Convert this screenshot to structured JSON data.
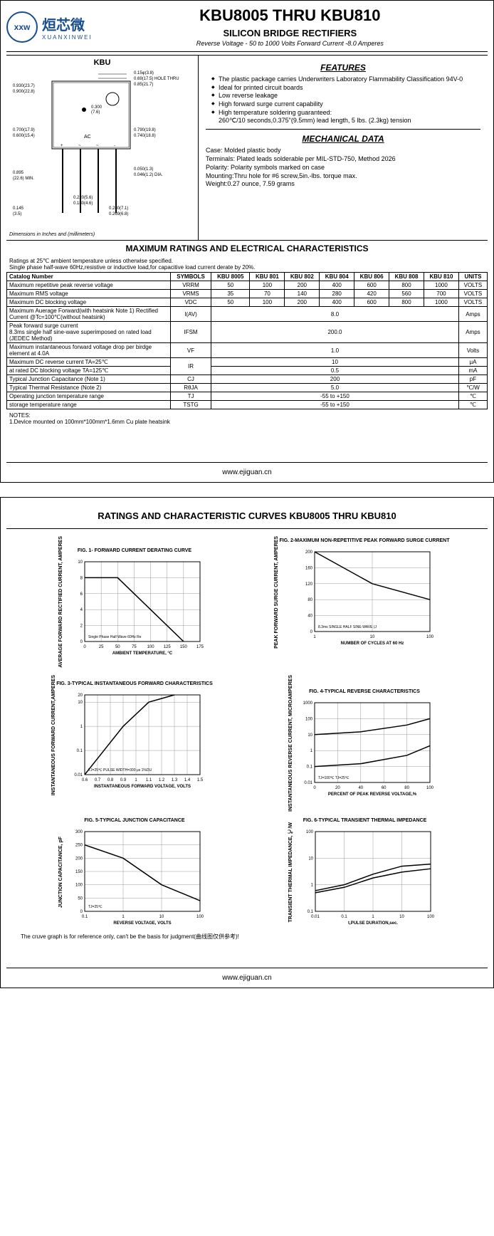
{
  "logo": {
    "brand_cn": "烜芯微",
    "brand_en": "XUANXINWEI",
    "icon_text": "xxw"
  },
  "title": "KBU8005 THRU KBU810",
  "subtitle": "SILICON BRIDGE RECTIFIERS",
  "subsub": "Reverse Voltage - 50 to 1000 Volts    Forward Current -8.0 Amperes",
  "package_label": "KBU",
  "dim_text": "Dimensions in Inches and (millimeters)",
  "features_title": "FEATURES",
  "features": [
    "The plastic package carries Underwriters Laboratory Flammability Classification 94V-0",
    "Ideal for printed circuit boards",
    "Low reverse leakage",
    "High forward surge current capability",
    "High temperature soldering guaranteed:"
  ],
  "features_extra": "260℃/10 seconds,0.375\"(9.5mm) lead length, 5 lbs. (2.3kg) tension",
  "mech_title": "MECHANICAL DATA",
  "mech": {
    "case": "Case: Molded plastic body",
    "terminals": "Terminals: Plated leads solderable per MIL-STD-750, Method 2026",
    "polarity": "Polarity: Polarity symbols marked on case",
    "mounting": "Mounting:Thru hole for #6 screw,5in.-lbs. torque max.",
    "weight": "Weight:0.27 ounce, 7.59 grams"
  },
  "ratings_title": "MAXIMUM RATINGS AND ELECTRICAL CHARACTERISTICS",
  "ratings_desc": "Ratings at 25℃ ambient temperature unless otherwise specified.\nSingle phase half-wave 60Hz,resistive or inductive load,for capacitive load current derate by 20%.",
  "columns_label": "Catalog        Number",
  "columns": [
    "SYMBOLS",
    "KBU 8005",
    "KBU 801",
    "KBU 802",
    "KBU 804",
    "KBU 806",
    "KBU 808",
    "KBU 810",
    "UNITS"
  ],
  "rows": [
    {
      "param": "Maximum repetitive peak reverse voltage",
      "sym": "VRRM",
      "vals": [
        "50",
        "100",
        "200",
        "400",
        "600",
        "800",
        "1000"
      ],
      "unit": "VOLTS",
      "merged": false
    },
    {
      "param": "Maximum RMS voltage",
      "sym": "VRMS",
      "vals": [
        "35",
        "70",
        "140",
        "280",
        "420",
        "560",
        "700"
      ],
      "unit": "VOLTS",
      "merged": false
    },
    {
      "param": "Maximum DC blocking voltage",
      "sym": "VDC",
      "vals": [
        "50",
        "100",
        "200",
        "400",
        "600",
        "800",
        "1000"
      ],
      "unit": "VOLTS",
      "merged": false
    },
    {
      "param": "Maximum Auerage Forward(with heatsink Note 1) Rectified Current @Tc=100℃(without heatsink)",
      "sym": "I(AV)",
      "vals": [
        "8.0"
      ],
      "unit": "Amps",
      "merged": true
    },
    {
      "param": "Peak forward surge current\n8.3ms single half sine-wave superimposed on rated load (JEDEC Method)",
      "sym": "IFSM",
      "vals": [
        "200.0"
      ],
      "unit": "Amps",
      "merged": true
    },
    {
      "param": "Maximum instantaneous forward voltage drop per birdge element at 4.0A",
      "sym": "VF",
      "vals": [
        "1.0"
      ],
      "unit": "Volts",
      "merged": true
    },
    {
      "param": "Maximum DC reverse current    TA=25℃",
      "sym": "IR",
      "vals": [
        "10"
      ],
      "unit": "μA",
      "merged": true,
      "rowspan_sym": 2
    },
    {
      "param": "at rated DC blocking voltage    TA=125℃",
      "sym": "",
      "vals": [
        "0.5"
      ],
      "unit": "mA",
      "merged": true,
      "skip_sym": true
    },
    {
      "param": "Typical Junction Capacitance (Note 1)",
      "sym": "CJ",
      "vals": [
        "200"
      ],
      "unit": "pF",
      "merged": true
    },
    {
      "param": "Typical Thermal Resistance (Note 2)",
      "sym": "RθJA",
      "vals": [
        "5.0"
      ],
      "unit": "℃/W",
      "merged": true
    },
    {
      "param": "Operating junction temperature range",
      "sym": "TJ",
      "vals": [
        "-55 to +150"
      ],
      "unit": "℃",
      "merged": true
    },
    {
      "param": "storage temperature range",
      "sym": "TSTG",
      "vals": [
        "-55 to +150"
      ],
      "unit": "℃",
      "merged": true
    }
  ],
  "notes_title": "NOTES:",
  "notes_text": "1.Device mounted on 100mm*100mm*1.6mm Cu plate heatsink",
  "footer": "www.ejiguan.cn",
  "page2_title": "RATINGS AND CHARACTERISTIC CURVES KBU8005 THRU KBU810",
  "charts": [
    {
      "title": "FIG. 1- FORWARD CURRENT DERATING CURVE",
      "ylabel": "AVERAGE FORWARD RECTIFIED CURRENT, AMPERES",
      "xlabel": "AMBIENT TEMPERATURE, °C",
      "xlim": [
        0,
        175
      ],
      "ylim": [
        0,
        10
      ],
      "xticks": [
        0,
        25,
        50,
        75,
        100,
        125,
        150,
        175
      ],
      "yticks": [
        0,
        2,
        4,
        6,
        8,
        10
      ],
      "xscale": "linear",
      "yscale": "linear",
      "note": "Single Phase Half Wave 60Hz Resistive or Inductive Load",
      "line": [
        [
          0,
          8
        ],
        [
          50,
          8
        ],
        [
          150,
          0
        ]
      ],
      "line_color": "#000",
      "bg": "#fff",
      "grid": "#999"
    },
    {
      "title": "FIG. 2-MAXIMUM NON-REPETITIVE PEAK FORWARD SURGE CURRENT",
      "ylabel": "PEAK FORWARD SURGE CURRENT, AMPERES",
      "xlabel": "NUMBER OF CYCLES AT 60 Hz",
      "xlim": [
        1,
        100
      ],
      "ylim": [
        0,
        200
      ],
      "xticks": [
        1,
        10,
        100
      ],
      "yticks": [
        0,
        40,
        80,
        120,
        160,
        200
      ],
      "xscale": "log",
      "yscale": "linear",
      "note": "8.3ms SINGLE HALF SINE-WAVE (JEDEC Method)",
      "line": [
        [
          1,
          200
        ],
        [
          10,
          120
        ],
        [
          100,
          80
        ]
      ],
      "line_color": "#000",
      "bg": "#fff",
      "grid": "#999"
    },
    {
      "title": "FIG. 3-TYPICAL INSTANTANEOUS FORWARD CHARACTERISTICS",
      "ylabel": "INSTANTANEOUS FORWARD CURRENT,AMPERES",
      "xlabel": "INSTANTANEOUS FORWARD VOLTAGE, VOLTS",
      "xlim": [
        0.6,
        1.5
      ],
      "ylim": [
        0.01,
        20
      ],
      "xticks": [
        0.6,
        0.7,
        0.8,
        0.9,
        1.0,
        1.1,
        1.2,
        1.3,
        1.4,
        1.5
      ],
      "yticks": [
        0.01,
        0.1,
        1,
        10,
        20
      ],
      "xscale": "linear",
      "yscale": "log",
      "note": "TJ=25℃ PULSE WIDTH=300 μs 1%DUTY CYCLE",
      "line": [
        [
          0.6,
          0.01
        ],
        [
          0.75,
          0.1
        ],
        [
          0.9,
          1
        ],
        [
          1.1,
          10
        ],
        [
          1.3,
          20
        ]
      ],
      "line_color": "#000",
      "bg": "#fff",
      "grid": "#999"
    },
    {
      "title": "FIG. 4-TYPICAL REVERSE CHARACTERISTICS",
      "ylabel": "INSTANTANEOUS REVERSE CURRENT, MICROAMPERES",
      "xlabel": "PERCENT OF PEAK REVERSE VOLTAGE,%",
      "xlim": [
        0,
        100
      ],
      "ylim": [
        0.01,
        1000
      ],
      "xticks": [
        0,
        20,
        40,
        60,
        80,
        100
      ],
      "yticks": [
        0.01,
        0.1,
        1,
        10,
        100,
        1000
      ],
      "xscale": "linear",
      "yscale": "log",
      "note": "TJ=100℃  TJ=25℃",
      "lines": [
        {
          "pts": [
            [
              0,
              10
            ],
            [
              40,
              15
            ],
            [
              80,
              40
            ],
            [
              100,
              100
            ]
          ],
          "label": "TJ=100℃"
        },
        {
          "pts": [
            [
              0,
              0.1
            ],
            [
              40,
              0.15
            ],
            [
              80,
              0.5
            ],
            [
              100,
              2
            ]
          ],
          "label": "TJ=25℃"
        }
      ],
      "line_color": "#000",
      "bg": "#fff",
      "grid": "#999"
    },
    {
      "title": "FIG. 5-TYPICAL JUNCTION CAPACITANCE",
      "ylabel": "JUNCTION CAPACITANCE, pF",
      "xlabel": "REVERSE VOLTAGE, VOLTS",
      "xlim": [
        0.1,
        100
      ],
      "ylim": [
        0,
        300
      ],
      "xticks": [
        0.1,
        1.0,
        10,
        100
      ],
      "yticks": [
        0,
        50,
        100,
        150,
        200,
        250,
        300
      ],
      "xscale": "log",
      "yscale": "linear",
      "note": "TJ=25℃",
      "line": [
        [
          0.1,
          250
        ],
        [
          1,
          200
        ],
        [
          10,
          100
        ],
        [
          100,
          40
        ]
      ],
      "line_color": "#000",
      "bg": "#fff",
      "grid": "#999"
    },
    {
      "title": "FIG. 6-TYPICAL TRANSIENT THERMAL IMPEDANCE",
      "ylabel": "TRANSIENT THERMAL IMPEDANCE, ℃/W",
      "xlabel": "t,PULSE DURATION,sec.",
      "xlim": [
        0.01,
        100
      ],
      "ylim": [
        0.1,
        100
      ],
      "xticks": [
        0.01,
        0.1,
        1.0,
        10,
        100
      ],
      "yticks": [
        0.1,
        1.0,
        10,
        100
      ],
      "xscale": "log",
      "yscale": "log",
      "lines": [
        {
          "pts": [
            [
              0.01,
              0.6
            ],
            [
              0.1,
              1.0
            ],
            [
              1,
              2.5
            ],
            [
              10,
              5
            ],
            [
              100,
              6
            ]
          ]
        },
        {
          "pts": [
            [
              0.01,
              0.5
            ],
            [
              0.1,
              0.8
            ],
            [
              1,
              1.8
            ],
            [
              10,
              3
            ],
            [
              100,
              4
            ]
          ]
        }
      ],
      "line_color": "#000",
      "bg": "#fff",
      "grid": "#999"
    }
  ],
  "disclaimer": "The cruve graph is for reference only, can't be the basis for judgment(曲线图仅供参考)!"
}
